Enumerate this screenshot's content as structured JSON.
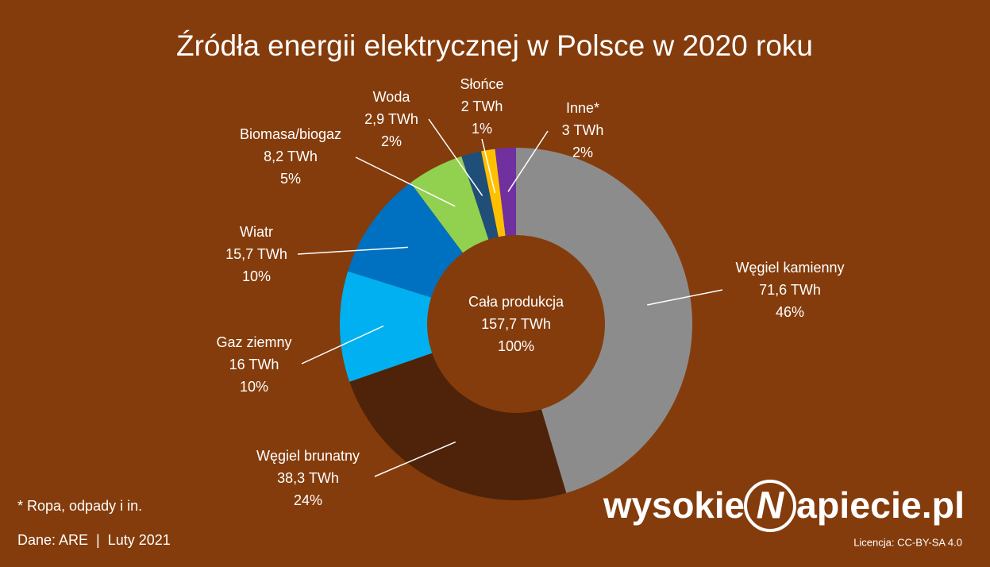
{
  "chart_data": {
    "type": "pie",
    "hole": true,
    "title": "Źródła energii elektrycznej w Polsce w 2020 roku",
    "categories": [
      "Węgiel kamienny",
      "Węgiel brunatny",
      "Gaz ziemny",
      "Wiatr",
      "Biomasa/biogaz",
      "Woda",
      "Słońce",
      "Inne*"
    ],
    "values": [
      71.6,
      38.3,
      16,
      15.7,
      8.2,
      2.9,
      2,
      3
    ],
    "value_labels": [
      "71,6 TWh",
      "38,3 TWh",
      "16 TWh",
      "15,7 TWh",
      "8,2 TWh",
      "2,9 TWh",
      "2 TWh",
      "3 TWh"
    ],
    "shares": [
      46,
      24,
      10,
      10,
      5,
      2,
      1,
      2
    ],
    "share_labels": [
      "46%",
      "24%",
      "10%",
      "10%",
      "5%",
      "2%",
      "1%",
      "2%"
    ],
    "colors": [
      "#8c8c8c",
      "#4f2309",
      "#00b0f0",
      "#0070c0",
      "#92d050",
      "#1f4e79",
      "#ffc000",
      "#7030a0"
    ],
    "center": {
      "label": "Cała produkcja",
      "value": 157.7,
      "value_label": "157,7 TWh",
      "share": 100,
      "share_label": "100%"
    }
  },
  "footnote": "* Ropa, odpady i in.",
  "source": "Dane: ARE  |  Luty 2021",
  "logo": {
    "left": "wysokie",
    "letter": "N",
    "right": "apiecie.pl"
  },
  "license": "Licencja: CC-BY-SA 4.0"
}
